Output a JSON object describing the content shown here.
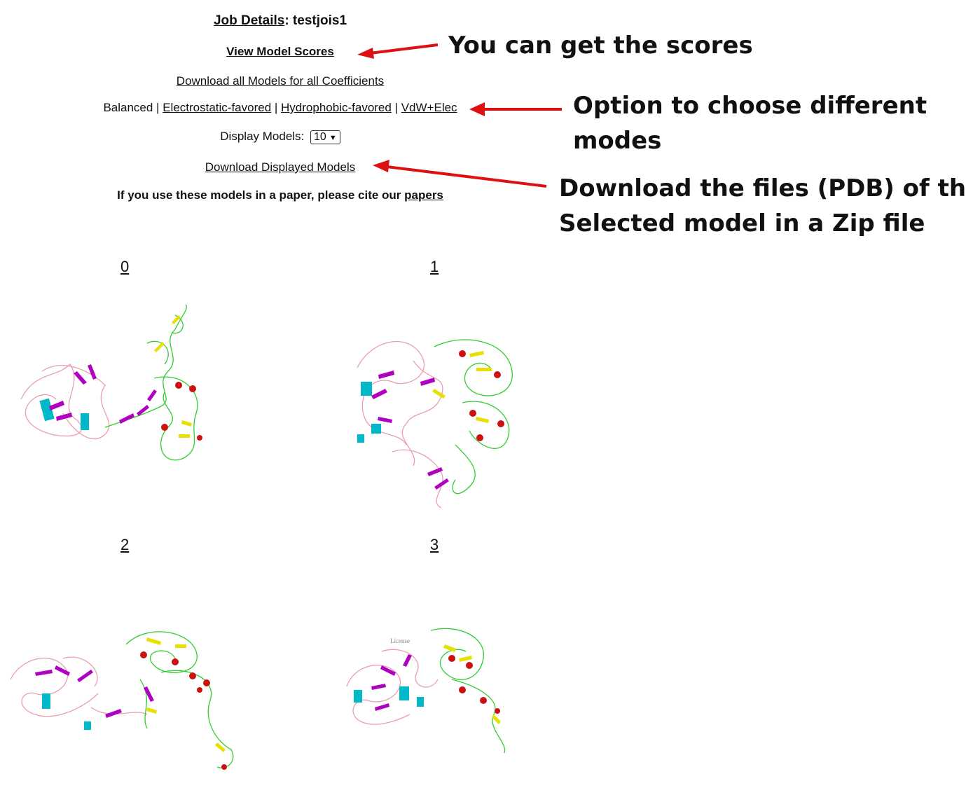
{
  "job": {
    "label": "Job Details",
    "name": ": testjois1"
  },
  "links": {
    "view_scores": "View Model Scores",
    "download_all": "Download all Models for all Coefficients",
    "download_displayed": "Download Displayed Models"
  },
  "modes": {
    "current": "Balanced",
    "separator": " | ",
    "options": [
      "Electrostatic-favored",
      "Hydrophobic-favored",
      "VdW+Elec"
    ]
  },
  "display": {
    "label": "Display Models:",
    "value": "10"
  },
  "cite": {
    "text": "If you use these models in a paper, please cite our ",
    "link": "papers"
  },
  "annotations": {
    "scores": "You can get the scores",
    "modes_line1": "Option to choose different",
    "modes_line2": "modes",
    "download_line1": "Download the files (PDB) of the",
    "download_line2": "Selected model in a Zip file"
  },
  "models": [
    {
      "label": "0"
    },
    {
      "label": "1"
    },
    {
      "label": "2"
    },
    {
      "label": "3"
    }
  ],
  "colors": {
    "arrow": "#dd1111",
    "helix_cyan": "#00b8c8",
    "sheet_magenta": "#b000c0",
    "coil_pink": "#e8a0b0",
    "coil_green": "#33cc33",
    "sheet_yellow": "#e8e000",
    "helix_red": "#cc1111"
  }
}
